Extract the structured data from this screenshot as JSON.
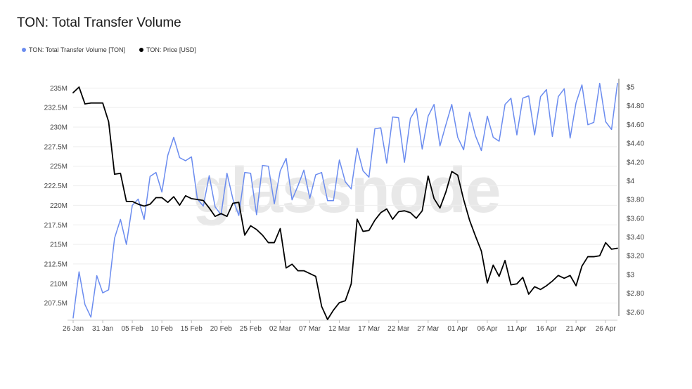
{
  "title": "TON: Total Transfer Volume",
  "watermark": "glassnode",
  "colors": {
    "volume": "#6b8cef",
    "price": "#000000",
    "grid": "#eeeeee",
    "axis": "#9a9a9a"
  },
  "legend": {
    "volume_label": "TON: Total Transfer Volume [TON]",
    "price_label": "TON: Price [USD]"
  },
  "chart_data": {
    "type": "line",
    "title": "TON: Total Transfer Volume",
    "x_start": "2024-01-26",
    "x_end": "2024-04-29",
    "x_ticks": [
      "26 Jan",
      "31 Jan",
      "05 Feb",
      "10 Feb",
      "15 Feb",
      "20 Feb",
      "25 Feb",
      "02 Mar",
      "07 Mar",
      "12 Mar",
      "17 Mar",
      "22 Mar",
      "27 Mar",
      "01 Apr",
      "06 Apr",
      "11 Apr",
      "16 Apr",
      "21 Apr",
      "26 Apr"
    ],
    "y_left": {
      "label": "TON",
      "min": 205.4,
      "max": 236.2,
      "ticks": [
        207.5,
        210,
        212.5,
        215,
        217.5,
        220,
        222.5,
        225,
        227.5,
        230,
        232.5,
        235
      ],
      "tick_labels": [
        "207.5M",
        "210M",
        "212.5M",
        "215M",
        "217.5M",
        "220M",
        "222.5M",
        "225M",
        "227.5M",
        "230M",
        "232.5M",
        "235M"
      ]
    },
    "y_right": {
      "label": "USD",
      "min": 2.52,
      "max": 5.09,
      "ticks": [
        2.6,
        2.8,
        3,
        3.2,
        3.4,
        3.6,
        3.8,
        4,
        4.2,
        4.4,
        4.6,
        4.8,
        5
      ],
      "tick_labels": [
        "$2.60",
        "$2.80",
        "$3",
        "$3.20",
        "$3.40",
        "$3.60",
        "$3.80",
        "$4",
        "$4.20",
        "$4.40",
        "$4.60",
        "$4.80",
        "$5"
      ]
    },
    "series": [
      {
        "name": "TON: Total Transfer Volume [TON]",
        "axis": "left",
        "unit": "M TON",
        "values": [
          205.6,
          211.5,
          207.3,
          205.7,
          211.0,
          208.8,
          209.2,
          215.8,
          218.2,
          215.0,
          220.0,
          220.8,
          218.2,
          223.7,
          224.2,
          221.7,
          226.4,
          228.7,
          226.1,
          225.7,
          226.2,
          220.8,
          219.9,
          223.8,
          219.8,
          218.8,
          224.1,
          220.8,
          218.7,
          224.2,
          224.1,
          218.8,
          225.1,
          225.0,
          220.2,
          224.4,
          226.0,
          220.7,
          222.5,
          224.5,
          220.9,
          223.9,
          224.2,
          220.6,
          220.6,
          225.8,
          223.0,
          222.1,
          227.3,
          224.4,
          223.6,
          229.8,
          229.9,
          225.4,
          231.3,
          231.2,
          225.5,
          231.1,
          232.4,
          227.2,
          231.4,
          232.9,
          227.6,
          230.3,
          232.9,
          228.7,
          227.1,
          231.9,
          228.9,
          227.0,
          231.4,
          228.7,
          228.2,
          232.9,
          233.7,
          229.0,
          233.7,
          234.0,
          229.0,
          233.9,
          234.8,
          228.8,
          233.9,
          234.9,
          228.6,
          233.1,
          235.4,
          230.3,
          230.6,
          235.6,
          230.7,
          229.7,
          235.6
        ]
      },
      {
        "name": "TON: Price [USD]",
        "axis": "right",
        "unit": "USD",
        "values": [
          4.94,
          5.0,
          4.82,
          4.83,
          4.83,
          4.83,
          4.63,
          4.07,
          4.08,
          3.78,
          3.78,
          3.75,
          3.73,
          3.75,
          3.82,
          3.82,
          3.77,
          3.83,
          3.74,
          3.84,
          3.81,
          3.8,
          3.79,
          3.71,
          3.62,
          3.65,
          3.62,
          3.76,
          3.77,
          3.42,
          3.52,
          3.48,
          3.42,
          3.34,
          3.34,
          3.49,
          3.07,
          3.11,
          3.04,
          3.04,
          3.01,
          2.98,
          2.66,
          2.52,
          2.62,
          2.7,
          2.72,
          2.9,
          3.59,
          3.46,
          3.47,
          3.58,
          3.66,
          3.7,
          3.59,
          3.67,
          3.68,
          3.66,
          3.6,
          3.68,
          4.05,
          3.81,
          3.71,
          3.88,
          4.1,
          4.06,
          3.8,
          3.58,
          3.41,
          3.25,
          2.91,
          3.1,
          2.98,
          3.15,
          2.89,
          2.9,
          2.97,
          2.79,
          2.87,
          2.84,
          2.88,
          2.93,
          2.99,
          2.96,
          2.99,
          2.88,
          3.09,
          3.19,
          3.19,
          3.2,
          3.34,
          3.27,
          3.28
        ]
      }
    ]
  }
}
